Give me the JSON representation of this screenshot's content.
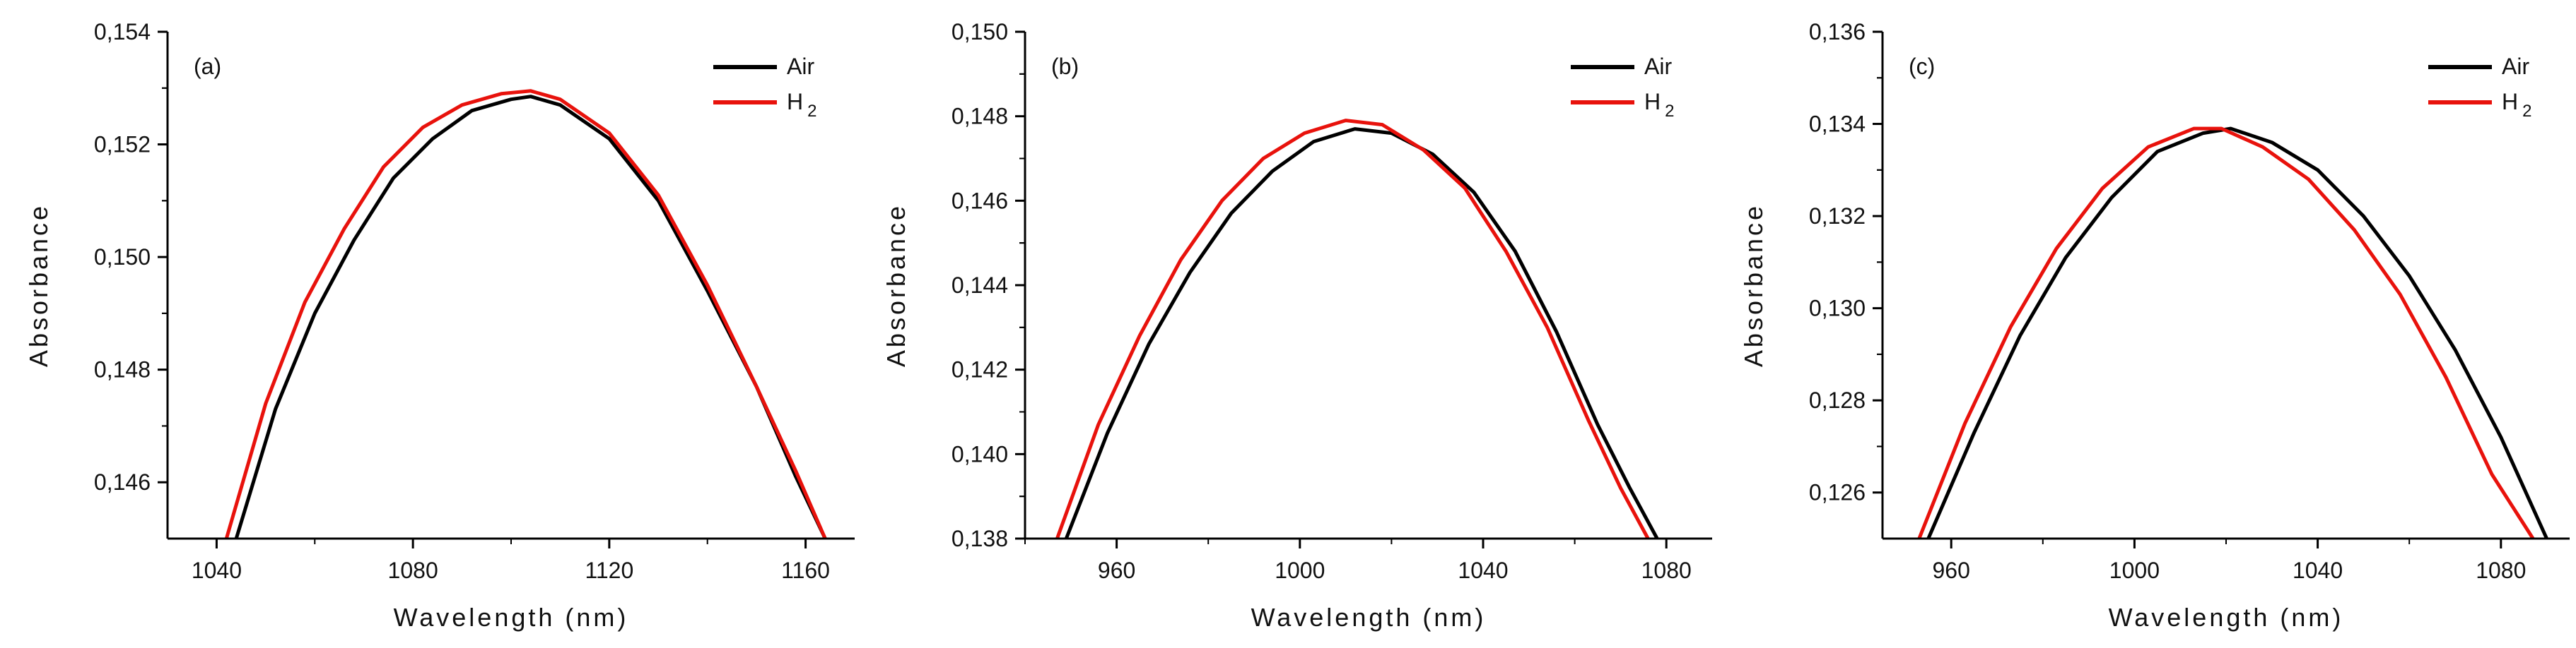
{
  "chart_data": [
    {
      "type": "line",
      "panel_label": "(a)",
      "xlabel": "Wavelength (nm)",
      "ylabel": "Absorbance",
      "xlim": [
        1030,
        1170
      ],
      "ylim": [
        0.145,
        0.154
      ],
      "xticks": [
        1040,
        1080,
        1120,
        1160
      ],
      "xtick_labels": [
        "1040",
        "1080",
        "1120",
        "1160"
      ],
      "yticks": [
        0.146,
        0.148,
        0.15,
        0.152,
        0.154
      ],
      "ytick_labels": [
        "0,146",
        "0,148",
        "0,150",
        "0,152",
        "0,154"
      ],
      "legend_position": "top-right",
      "series": [
        {
          "name": "Air",
          "subscript": "",
          "color": "#000000",
          "x": [
            1044,
            1052,
            1060,
            1068,
            1076,
            1084,
            1092,
            1100,
            1104,
            1110,
            1120,
            1130,
            1140,
            1150,
            1158,
            1164
          ],
          "y": [
            0.145,
            0.1473,
            0.149,
            0.1503,
            0.1514,
            0.1521,
            0.1526,
            0.1528,
            0.15285,
            0.1527,
            0.1521,
            0.151,
            0.1494,
            0.1477,
            0.1461,
            0.145
          ]
        },
        {
          "name": "H",
          "subscript": "2",
          "color": "#e8120c",
          "x": [
            1042,
            1050,
            1058,
            1066,
            1074,
            1082,
            1090,
            1098,
            1104,
            1110,
            1120,
            1130,
            1140,
            1150,
            1158,
            1164
          ],
          "y": [
            0.145,
            0.1474,
            0.1492,
            0.1505,
            0.1516,
            0.1523,
            0.1527,
            0.1529,
            0.15295,
            0.1528,
            0.1522,
            0.1511,
            0.1495,
            0.1477,
            0.1462,
            0.145
          ]
        }
      ]
    },
    {
      "type": "line",
      "panel_label": "(b)",
      "xlabel": "Wavelength (nm)",
      "ylabel": "Absorbance",
      "xlim": [
        940,
        1090
      ],
      "ylim": [
        0.138,
        0.15
      ],
      "xticks": [
        960,
        1000,
        1040,
        1080
      ],
      "xtick_labels": [
        "960",
        "1000",
        "1040",
        "1080"
      ],
      "yticks": [
        0.138,
        0.14,
        0.142,
        0.144,
        0.146,
        0.148,
        0.15
      ],
      "ytick_labels": [
        "0,138",
        "0,140",
        "0,142",
        "0,144",
        "0,146",
        "0,148",
        "0,150"
      ],
      "legend_position": "top-right",
      "series": [
        {
          "name": "Air",
          "subscript": "",
          "color": "#000000",
          "x": [
            949,
            958,
            967,
            976,
            985,
            994,
            1003,
            1012,
            1020,
            1029,
            1038,
            1047,
            1056,
            1065,
            1072,
            1078
          ],
          "y": [
            0.138,
            0.1405,
            0.1426,
            0.1443,
            0.1457,
            0.1467,
            0.1474,
            0.1477,
            0.1476,
            0.1471,
            0.1462,
            0.1448,
            0.1429,
            0.1407,
            0.1392,
            0.138
          ]
        },
        {
          "name": "H",
          "subscript": "2",
          "color": "#e8120c",
          "x": [
            947,
            956,
            965,
            974,
            983,
            992,
            1001,
            1010,
            1018,
            1027,
            1036,
            1045,
            1054,
            1063,
            1070,
            1076
          ],
          "y": [
            0.138,
            0.1407,
            0.1428,
            0.1446,
            0.146,
            0.147,
            0.1476,
            0.1479,
            0.1478,
            0.1472,
            0.1463,
            0.1448,
            0.143,
            0.1408,
            0.1392,
            0.138
          ]
        }
      ]
    },
    {
      "type": "line",
      "panel_label": "(c)",
      "xlabel": "Wavelength (nm)",
      "ylabel": "Absorbance",
      "xlim": [
        945,
        1095
      ],
      "ylim": [
        0.125,
        0.136
      ],
      "xticks": [
        960,
        1000,
        1040,
        1080
      ],
      "xtick_labels": [
        "960",
        "1000",
        "1040",
        "1080"
      ],
      "yticks": [
        0.126,
        0.128,
        0.13,
        0.132,
        0.134,
        0.136
      ],
      "ytick_labels": [
        "0,126",
        "0,128",
        "0,130",
        "0,132",
        "0,134",
        "0,136"
      ],
      "legend_position": "top-right",
      "series": [
        {
          "name": "Air",
          "subscript": "",
          "color": "#000000",
          "x": [
            955,
            965,
            975,
            985,
            995,
            1005,
            1015,
            1021,
            1030,
            1040,
            1050,
            1060,
            1070,
            1080,
            1090
          ],
          "y": [
            0.125,
            0.1273,
            0.1294,
            0.1311,
            0.1324,
            0.1334,
            0.1338,
            0.1339,
            0.1336,
            0.133,
            0.132,
            0.1307,
            0.1291,
            0.1272,
            0.125
          ]
        },
        {
          "name": "H",
          "subscript": "2",
          "color": "#e8120c",
          "x": [
            953,
            963,
            973,
            983,
            993,
            1003,
            1013,
            1019,
            1028,
            1038,
            1048,
            1058,
            1068,
            1078,
            1087
          ],
          "y": [
            0.125,
            0.1275,
            0.1296,
            0.1313,
            0.1326,
            0.1335,
            0.1339,
            0.1339,
            0.1335,
            0.1328,
            0.1317,
            0.1303,
            0.1285,
            0.1264,
            0.125
          ]
        }
      ]
    }
  ]
}
